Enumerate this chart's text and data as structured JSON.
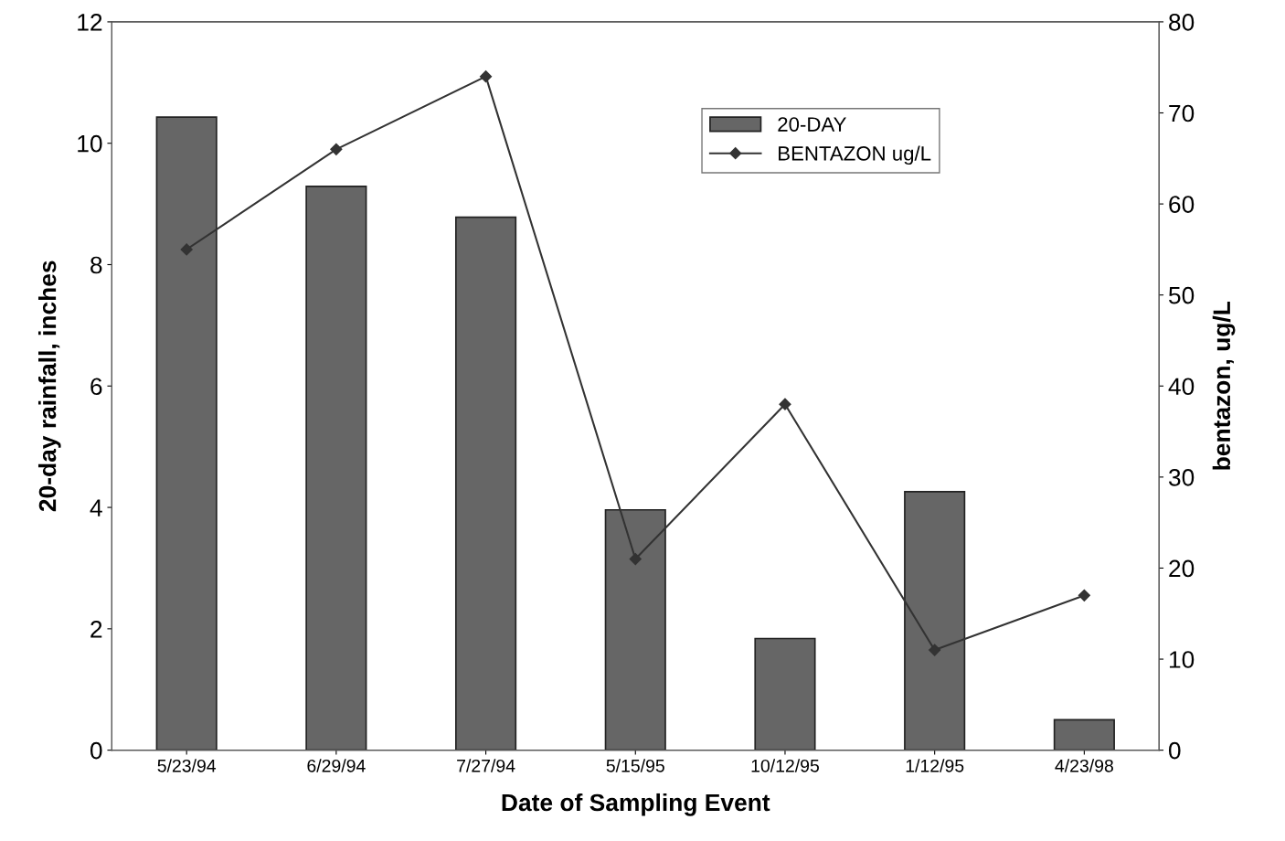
{
  "chart_data": {
    "type": "bar",
    "xlabel": "Date of Sampling Event",
    "ylabel": "20-day rainfall, inches",
    "y2label": "bentazon, ug/L",
    "categories": [
      "5/23/94",
      "6/29/94",
      "7/27/94",
      "5/15/95",
      "10/12/95",
      "1/12/95",
      "4/23/98"
    ],
    "series": [
      {
        "name": "20-DAY",
        "color": "#666666",
        "values": [
          10.43,
          9.29,
          8.78,
          3.96,
          1.84,
          4.26,
          0.5
        ]
      },
      {
        "name": "BENTAZON ug/L",
        "type": "line",
        "axis": "y2",
        "color": "#333333",
        "marker": "diamond",
        "values": [
          55,
          66,
          74,
          21,
          38,
          11,
          17
        ]
      }
    ],
    "ylim": [
      0,
      12
    ],
    "yticks": [
      0,
      2,
      4,
      6,
      8,
      10,
      12
    ],
    "y2lim": [
      0,
      80
    ],
    "y2ticks": [
      0,
      10,
      20,
      30,
      40,
      50,
      60,
      70,
      80
    ],
    "grid": false,
    "legend": "top right"
  }
}
